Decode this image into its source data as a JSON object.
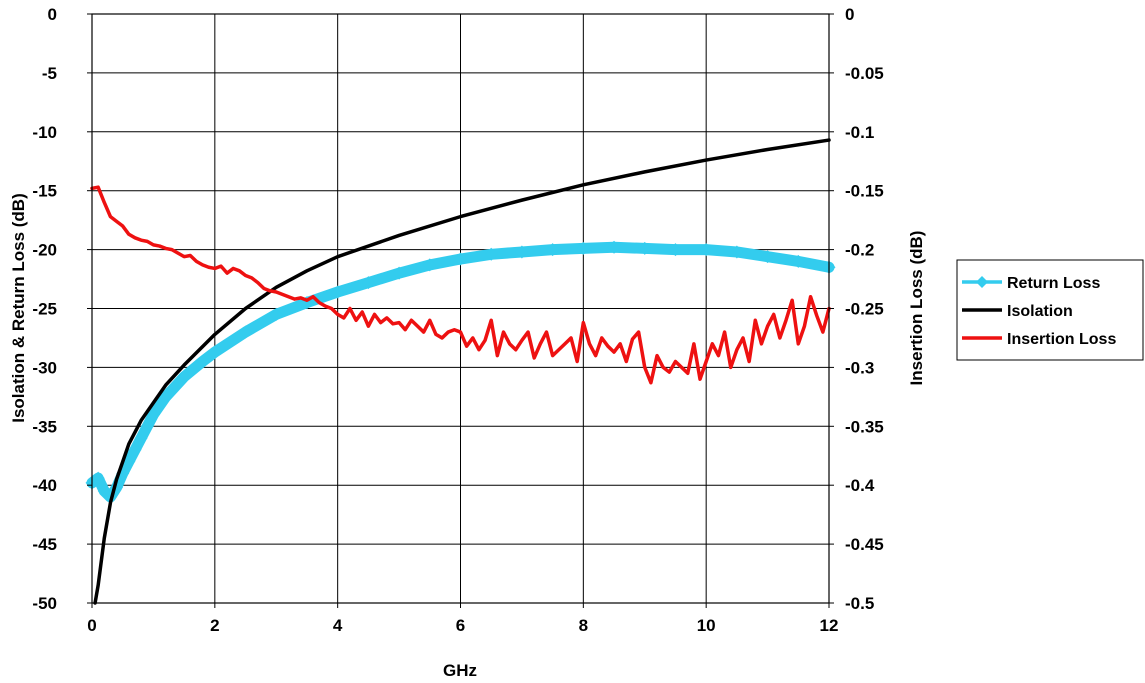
{
  "chart_data": {
    "type": "line",
    "xlabel": "GHz",
    "ylabel_left": "Isolation & Return Loss (dB)",
    "ylabel_right": "Insertion Loss (dB)",
    "xlim": [
      0,
      12
    ],
    "ylim_left": [
      -50,
      0
    ],
    "ylim_right": [
      -0.5,
      0
    ],
    "x_ticks": [
      "0",
      "2",
      "4",
      "6",
      "8",
      "10",
      "12"
    ],
    "y_ticks_left": [
      "0",
      "-5",
      "-10",
      "-15",
      "-20",
      "-25",
      "-30",
      "-35",
      "-40",
      "-45",
      "-50"
    ],
    "y_ticks_right": [
      "0",
      "-0.05",
      "-0.1",
      "-0.15",
      "-0.2",
      "-0.25",
      "-0.3",
      "-0.35",
      "-0.4",
      "-0.45",
      "-0.5"
    ],
    "grid": true,
    "legend_position": "right",
    "series": [
      {
        "name": "Return Loss",
        "axis": "left",
        "color": "#33CCEE",
        "marker": "diamond",
        "x": [
          0,
          0.1,
          0.2,
          0.3,
          0.4,
          0.5,
          0.6,
          0.7,
          0.8,
          0.9,
          1.0,
          1.2,
          1.5,
          1.8,
          2.0,
          2.5,
          3.0,
          3.5,
          4.0,
          4.5,
          5.0,
          5.5,
          6.0,
          6.5,
          7.0,
          7.5,
          8.0,
          8.5,
          9.0,
          9.5,
          10.0,
          10.5,
          11.0,
          11.5,
          12.0
        ],
        "y": [
          -39.8,
          -39.4,
          -40.5,
          -41.0,
          -40.2,
          -39.0,
          -38.0,
          -37.0,
          -36.0,
          -35.0,
          -34.0,
          -32.5,
          -30.8,
          -29.5,
          -28.7,
          -27.0,
          -25.5,
          -24.5,
          -23.6,
          -22.8,
          -22.0,
          -21.3,
          -20.8,
          -20.4,
          -20.2,
          -20.0,
          -19.9,
          -19.8,
          -19.9,
          -20.0,
          -20.0,
          -20.2,
          -20.6,
          -21.0,
          -21.5
        ]
      },
      {
        "name": "Isolation",
        "axis": "left",
        "color": "#000000",
        "marker": "none",
        "x": [
          0.05,
          0.1,
          0.15,
          0.2,
          0.3,
          0.4,
          0.5,
          0.6,
          0.7,
          0.8,
          1.0,
          1.2,
          1.5,
          2.0,
          2.5,
          3.0,
          3.5,
          4.0,
          5.0,
          6.0,
          7.0,
          8.0,
          9.0,
          10.0,
          11.0,
          12.0
        ],
        "y": [
          -50.0,
          -48.5,
          -46.5,
          -44.5,
          -41.5,
          -39.5,
          -38.0,
          -36.5,
          -35.5,
          -34.5,
          -33.0,
          -31.5,
          -29.8,
          -27.2,
          -25.0,
          -23.2,
          -21.8,
          -20.6,
          -18.8,
          -17.2,
          -15.8,
          -14.5,
          -13.4,
          -12.4,
          -11.5,
          -10.7
        ]
      },
      {
        "name": "Insertion Loss",
        "axis": "right",
        "color": "#EE1111",
        "marker": "none",
        "x": [
          0.0,
          0.1,
          0.2,
          0.3,
          0.4,
          0.5,
          0.6,
          0.7,
          0.8,
          0.9,
          1.0,
          1.1,
          1.2,
          1.3,
          1.4,
          1.5,
          1.6,
          1.7,
          1.8,
          1.9,
          2.0,
          2.1,
          2.2,
          2.3,
          2.4,
          2.5,
          2.6,
          2.7,
          2.8,
          2.9,
          3.0,
          3.1,
          3.2,
          3.3,
          3.4,
          3.5,
          3.6,
          3.7,
          3.8,
          3.9,
          4.0,
          4.1,
          4.2,
          4.3,
          4.4,
          4.5,
          4.6,
          4.7,
          4.8,
          4.9,
          5.0,
          5.1,
          5.2,
          5.3,
          5.4,
          5.5,
          5.6,
          5.7,
          5.8,
          5.9,
          6.0,
          6.1,
          6.2,
          6.3,
          6.4,
          6.5,
          6.6,
          6.7,
          6.8,
          6.9,
          7.0,
          7.1,
          7.2,
          7.3,
          7.4,
          7.5,
          7.6,
          7.7,
          7.8,
          7.9,
          8.0,
          8.1,
          8.2,
          8.3,
          8.4,
          8.5,
          8.6,
          8.7,
          8.8,
          8.9,
          9.0,
          9.1,
          9.2,
          9.3,
          9.4,
          9.5,
          9.6,
          9.7,
          9.8,
          9.9,
          10.0,
          10.1,
          10.2,
          10.3,
          10.4,
          10.5,
          10.6,
          10.7,
          10.8,
          10.9,
          11.0,
          11.1,
          11.2,
          11.3,
          11.4,
          11.5,
          11.6,
          11.7,
          11.8,
          11.9,
          12.0
        ],
        "y": [
          -0.148,
          -0.147,
          -0.16,
          -0.172,
          -0.176,
          -0.18,
          -0.187,
          -0.19,
          -0.192,
          -0.193,
          -0.196,
          -0.197,
          -0.199,
          -0.2,
          -0.203,
          -0.206,
          -0.205,
          -0.21,
          -0.213,
          -0.215,
          -0.216,
          -0.214,
          -0.22,
          -0.216,
          -0.218,
          -0.222,
          -0.224,
          -0.228,
          -0.233,
          -0.235,
          -0.236,
          -0.238,
          -0.24,
          -0.242,
          -0.241,
          -0.243,
          -0.24,
          -0.245,
          -0.248,
          -0.25,
          -0.255,
          -0.258,
          -0.25,
          -0.26,
          -0.253,
          -0.265,
          -0.255,
          -0.262,
          -0.258,
          -0.263,
          -0.262,
          -0.268,
          -0.26,
          -0.265,
          -0.27,
          -0.26,
          -0.272,
          -0.275,
          -0.27,
          -0.268,
          -0.27,
          -0.282,
          -0.275,
          -0.285,
          -0.277,
          -0.26,
          -0.29,
          -0.27,
          -0.28,
          -0.285,
          -0.277,
          -0.27,
          -0.292,
          -0.28,
          -0.27,
          -0.29,
          -0.285,
          -0.28,
          -0.275,
          -0.295,
          -0.262,
          -0.28,
          -0.29,
          -0.275,
          -0.282,
          -0.287,
          -0.28,
          -0.295,
          -0.276,
          -0.27,
          -0.3,
          -0.313,
          -0.29,
          -0.3,
          -0.304,
          -0.295,
          -0.3,
          -0.305,
          -0.28,
          -0.31,
          -0.295,
          -0.28,
          -0.29,
          -0.27,
          -0.3,
          -0.285,
          -0.275,
          -0.295,
          -0.26,
          -0.28,
          -0.265,
          -0.255,
          -0.275,
          -0.26,
          -0.243,
          -0.28,
          -0.265,
          -0.24,
          -0.256,
          -0.27,
          -0.25
        ]
      }
    ]
  }
}
